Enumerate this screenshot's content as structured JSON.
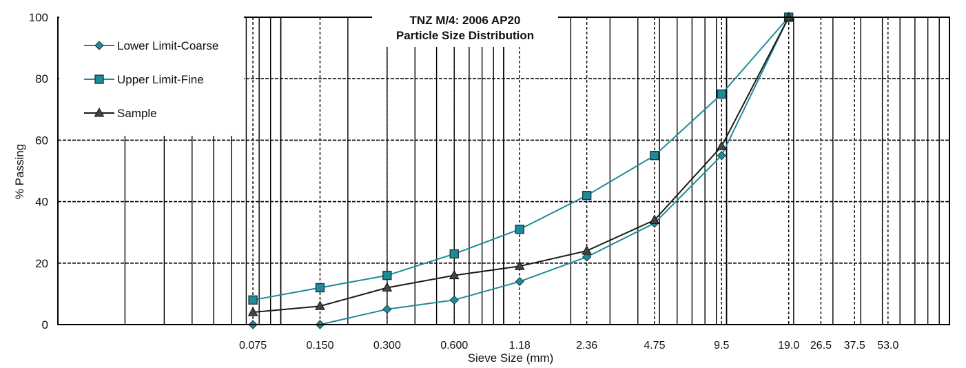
{
  "chart_data": {
    "type": "line",
    "title": [
      "TNZ M/4: 2006 AP20",
      "Particle Size Distribution"
    ],
    "xlabel": "Sieve Size (mm)",
    "ylabel": "% Passing",
    "x_scale": "log",
    "xlim": [
      0.01,
      100
    ],
    "ylim": [
      0,
      100
    ],
    "y_ticks": [
      0,
      20,
      40,
      60,
      80,
      100
    ],
    "x_tick_labels": [
      {
        "value": 0.075,
        "label": "0.075"
      },
      {
        "value": 0.15,
        "label": "0.150"
      },
      {
        "value": 0.3,
        "label": "0.300"
      },
      {
        "value": 0.6,
        "label": "0.600"
      },
      {
        "value": 1.18,
        "label": "1.18"
      },
      {
        "value": 2.36,
        "label": "2.36"
      },
      {
        "value": 4.75,
        "label": "4.75"
      },
      {
        "value": 9.5,
        "label": "9.5"
      },
      {
        "value": 19.0,
        "label": "19.0"
      },
      {
        "value": 26.5,
        "label": "26.5"
      },
      {
        "value": 37.5,
        "label": "37.5"
      },
      {
        "value": 53.0,
        "label": "53.0"
      }
    ],
    "dashed_sieve_lines": [
      0.075,
      0.15,
      0.3,
      0.6,
      1.18,
      2.36,
      4.75,
      9.5,
      19.0,
      26.5,
      37.5,
      53.0
    ],
    "grid": true,
    "legend_position": "top-left",
    "series": [
      {
        "name": "Lower Limit-Coarse",
        "marker": "diamond",
        "color": "#1f8a9a",
        "x": [
          0.075,
          0.15,
          0.3,
          0.6,
          1.18,
          2.36,
          4.75,
          9.5,
          19.0
        ],
        "values": [
          0,
          0,
          5,
          8,
          14,
          22,
          33,
          55,
          100
        ]
      },
      {
        "name": "Upper Limit-Fine",
        "marker": "square",
        "color": "#1f8a9a",
        "x": [
          0.075,
          0.15,
          0.3,
          0.6,
          1.18,
          2.36,
          4.75,
          9.5,
          19.0
        ],
        "values": [
          8,
          12,
          16,
          23,
          31,
          42,
          55,
          75,
          100
        ]
      },
      {
        "name": "Sample",
        "marker": "triangle",
        "color": "#1a1a1a",
        "x": [
          0.075,
          0.15,
          0.3,
          0.6,
          1.18,
          2.36,
          4.75,
          9.5,
          19.0
        ],
        "values": [
          4,
          6,
          12,
          16,
          19,
          24,
          34,
          58,
          100
        ]
      }
    ]
  }
}
